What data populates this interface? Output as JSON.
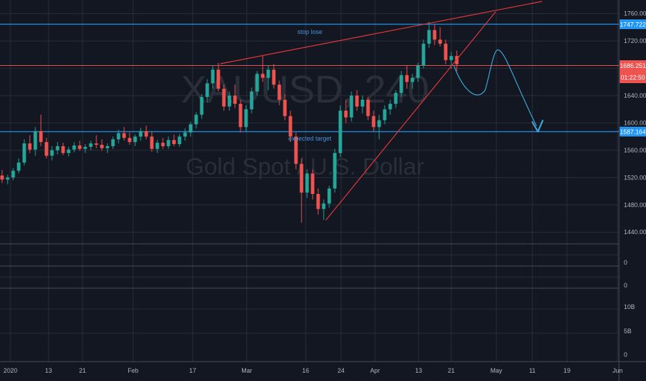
{
  "colors": {
    "background": "#131722",
    "grid": "#2a2e39",
    "up": "#26a69a",
    "down": "#ef5350",
    "trend_red": "#e5383b",
    "level_blue": "#2196f3",
    "projection": "#3da7d8",
    "watermark": "#2a2e39",
    "axis_text": "#b2b5be",
    "separator": "#4a4e59"
  },
  "watermark": {
    "symbol": "XAUUSD, 240",
    "description": "Gold Spot / U.S. Dollar"
  },
  "annotations": {
    "stop_lose": "stop lose",
    "expected_target": "expected target"
  },
  "price_badges": {
    "upper_level": "1747.722",
    "current_price": "1686.251",
    "countdown": "01:22:50",
    "lower_level": "1587.164"
  },
  "pane_labels": {
    "pane2_zero": "0",
    "pane3_zero": "0",
    "pane4_10b": "10B",
    "pane4_5b": "5B",
    "pane4_zero": "0"
  },
  "chart_data": {
    "type": "candlestick",
    "title": "",
    "ylim": [
      1425,
      1780
    ],
    "y_ticks": [
      "1760.000",
      "1720.000",
      "1680.000",
      "1640.000",
      "1600.000",
      "1560.000",
      "1520.000",
      "1480.000",
      "1440.000"
    ],
    "y_tick_values": [
      1760,
      1720,
      1680,
      1640,
      1600,
      1560,
      1520,
      1480,
      1440
    ],
    "x_ticks": [
      "2020",
      "13",
      "21",
      "Feb",
      "17",
      "Mar",
      "16",
      "24",
      "Apr",
      "13",
      "21",
      "May",
      "11",
      "19",
      "Jun"
    ],
    "candles": [
      [
        0,
        1523,
        1531,
        1512,
        1517
      ],
      [
        1,
        1517,
        1524,
        1510,
        1520
      ],
      [
        2,
        1520,
        1534,
        1516,
        1530
      ],
      [
        3,
        1530,
        1548,
        1526,
        1542
      ],
      [
        4,
        1542,
        1576,
        1538,
        1570
      ],
      [
        5,
        1570,
        1582,
        1556,
        1561
      ],
      [
        6,
        1561,
        1594,
        1552,
        1588
      ],
      [
        7,
        1588,
        1612,
        1566,
        1572
      ],
      [
        8,
        1572,
        1578,
        1548,
        1552
      ],
      [
        9,
        1552,
        1566,
        1545,
        1560
      ],
      [
        10,
        1560,
        1572,
        1554,
        1566
      ],
      [
        11,
        1566,
        1571,
        1553,
        1556
      ],
      [
        12,
        1556,
        1565,
        1551,
        1561
      ],
      [
        13,
        1561,
        1572,
        1557,
        1567
      ],
      [
        14,
        1567,
        1574,
        1559,
        1562
      ],
      [
        15,
        1562,
        1569,
        1556,
        1565
      ],
      [
        16,
        1565,
        1574,
        1560,
        1570
      ],
      [
        17,
        1570,
        1582,
        1563,
        1568
      ],
      [
        18,
        1568,
        1576,
        1559,
        1563
      ],
      [
        19,
        1563,
        1570,
        1556,
        1566
      ],
      [
        20,
        1566,
        1580,
        1562,
        1576
      ],
      [
        21,
        1576,
        1590,
        1570,
        1585
      ],
      [
        22,
        1585,
        1594,
        1574,
        1578
      ],
      [
        23,
        1578,
        1586,
        1568,
        1572
      ],
      [
        24,
        1572,
        1583,
        1566,
        1580
      ],
      [
        25,
        1580,
        1593,
        1574,
        1588
      ],
      [
        26,
        1588,
        1596,
        1576,
        1580
      ],
      [
        27,
        1580,
        1587,
        1558,
        1562
      ],
      [
        28,
        1562,
        1575,
        1556,
        1571
      ],
      [
        29,
        1571,
        1578,
        1562,
        1566
      ],
      [
        30,
        1566,
        1580,
        1562,
        1575
      ],
      [
        31,
        1575,
        1583,
        1566,
        1569
      ],
      [
        32,
        1569,
        1584,
        1565,
        1580
      ],
      [
        33,
        1580,
        1592,
        1574,
        1586
      ],
      [
        34,
        1586,
        1602,
        1580,
        1598
      ],
      [
        35,
        1598,
        1616,
        1592,
        1612
      ],
      [
        36,
        1612,
        1642,
        1606,
        1638
      ],
      [
        37,
        1638,
        1664,
        1630,
        1658
      ],
      [
        38,
        1658,
        1684,
        1650,
        1678
      ],
      [
        39,
        1678,
        1688,
        1646,
        1650
      ],
      [
        40,
        1650,
        1656,
        1618,
        1624
      ],
      [
        41,
        1624,
        1646,
        1618,
        1640
      ],
      [
        42,
        1640,
        1656,
        1622,
        1628
      ],
      [
        43,
        1628,
        1634,
        1586,
        1594
      ],
      [
        44,
        1594,
        1626,
        1588,
        1620
      ],
      [
        45,
        1620,
        1652,
        1614,
        1646
      ],
      [
        46,
        1646,
        1676,
        1640,
        1672
      ],
      [
        47,
        1672,
        1698,
        1660,
        1666
      ],
      [
        48,
        1666,
        1684,
        1648,
        1678
      ],
      [
        49,
        1678,
        1686,
        1650,
        1656
      ],
      [
        50,
        1656,
        1662,
        1626,
        1634
      ],
      [
        51,
        1634,
        1642,
        1604,
        1610
      ],
      [
        52,
        1610,
        1618,
        1572,
        1580
      ],
      [
        53,
        1580,
        1586,
        1532,
        1540
      ],
      [
        54,
        1540,
        1548,
        1454,
        1498
      ],
      [
        55,
        1498,
        1532,
        1490,
        1526
      ],
      [
        56,
        1526,
        1532,
        1488,
        1496
      ],
      [
        57,
        1496,
        1504,
        1466,
        1474
      ],
      [
        58,
        1474,
        1488,
        1458,
        1482
      ],
      [
        59,
        1482,
        1508,
        1476,
        1504
      ],
      [
        60,
        1504,
        1562,
        1498,
        1556
      ],
      [
        61,
        1556,
        1626,
        1550,
        1618
      ],
      [
        62,
        1618,
        1634,
        1600,
        1608
      ],
      [
        63,
        1608,
        1646,
        1602,
        1640
      ],
      [
        64,
        1640,
        1648,
        1618,
        1624
      ],
      [
        65,
        1624,
        1640,
        1614,
        1634
      ],
      [
        66,
        1634,
        1638,
        1604,
        1610
      ],
      [
        67,
        1610,
        1618,
        1588,
        1594
      ],
      [
        68,
        1594,
        1612,
        1576,
        1604
      ],
      [
        69,
        1604,
        1626,
        1598,
        1620
      ],
      [
        70,
        1620,
        1634,
        1612,
        1628
      ],
      [
        71,
        1628,
        1648,
        1622,
        1644
      ],
      [
        72,
        1644,
        1676,
        1638,
        1670
      ],
      [
        73,
        1670,
        1684,
        1650,
        1660
      ],
      [
        74,
        1660,
        1672,
        1650,
        1666
      ],
      [
        75,
        1666,
        1688,
        1660,
        1684
      ],
      [
        76,
        1684,
        1722,
        1680,
        1716
      ],
      [
        77,
        1716,
        1748,
        1710,
        1736
      ],
      [
        78,
        1736,
        1744,
        1714,
        1722
      ],
      [
        79,
        1722,
        1740,
        1712,
        1716
      ],
      [
        80,
        1716,
        1722,
        1686,
        1692
      ],
      [
        81,
        1692,
        1704,
        1680,
        1698
      ],
      [
        82,
        1698,
        1706,
        1676,
        1686
      ]
    ]
  }
}
